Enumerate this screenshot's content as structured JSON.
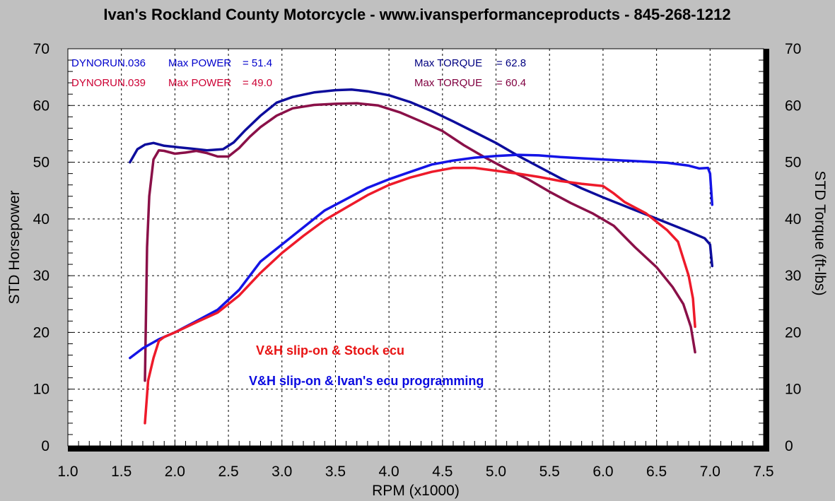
{
  "chart_data": {
    "type": "line",
    "title": "Ivan's Rockland County Motorcycle - www.ivansperformanceproducts - 845-268-1212",
    "xlabel": "RPM (x1000)",
    "ylabel_left": "STD Horsepower",
    "ylabel_right": "STD Torque (ft-lbs)",
    "xlim": [
      1.0,
      7.5
    ],
    "ylim": [
      0,
      70
    ],
    "x_ticks": [
      "1.0",
      "1.5",
      "2.0",
      "2.5",
      "3.0",
      "3.5",
      "4.0",
      "4.5",
      "5.0",
      "5.5",
      "6.0",
      "6.5",
      "7.0",
      "7.5"
    ],
    "y_ticks": [
      "0",
      "10",
      "20",
      "30",
      "40",
      "50",
      "60",
      "70"
    ],
    "grid": true,
    "runs": [
      {
        "name": "DYNORUN.036",
        "power_label": "Max POWER",
        "power_value": "= 51.4",
        "torque_label": "Max TORQUE",
        "torque_value": "= 62.8",
        "power_color": "#0000cc",
        "torque_color": "#000080"
      },
      {
        "name": "DYNORUN.039",
        "power_label": "Max POWER",
        "power_value": "= 49.0",
        "torque_label": "Max TORQUE",
        "torque_value": "= 60.4",
        "power_color": "#cc0033",
        "torque_color": "#800040"
      }
    ],
    "annotations": [
      {
        "text": "V&H slip-on & Stock ecu",
        "color": "#e81414"
      },
      {
        "text": "V&H slip-on & Ivan's ecu programming",
        "color": "#0a0ae0"
      }
    ],
    "series": [
      {
        "name": "DYNORUN.036 Torque",
        "color": "#0d0d9c",
        "x": [
          1.58,
          1.65,
          1.72,
          1.8,
          1.9,
          2.0,
          2.15,
          2.3,
          2.45,
          2.55,
          2.65,
          2.8,
          2.95,
          3.1,
          3.3,
          3.5,
          3.65,
          3.8,
          4.0,
          4.2,
          4.4,
          4.6,
          4.8,
          5.0,
          5.2,
          5.4,
          5.6,
          5.8,
          6.0,
          6.2,
          6.4,
          6.6,
          6.8,
          6.95,
          7.0,
          7.02
        ],
        "y": [
          50,
          52.3,
          53.1,
          53.4,
          52.9,
          52.7,
          52.4,
          52.1,
          52.3,
          53.5,
          55.5,
          58.2,
          60.5,
          61.5,
          62.3,
          62.7,
          62.8,
          62.5,
          61.8,
          60.6,
          59,
          57.2,
          55.3,
          53.4,
          51.2,
          49.2,
          47.2,
          45.4,
          43.8,
          42.3,
          40.8,
          39.3,
          37.8,
          36.6,
          35.5,
          31.7
        ]
      },
      {
        "name": "DYNORUN.039 Torque",
        "color": "#8a1048",
        "x": [
          1.72,
          1.74,
          1.76,
          1.8,
          1.85,
          1.9,
          2.0,
          2.1,
          2.2,
          2.3,
          2.4,
          2.5,
          2.6,
          2.7,
          2.8,
          2.95,
          3.1,
          3.3,
          3.5,
          3.7,
          3.9,
          4.1,
          4.3,
          4.5,
          4.7,
          4.9,
          5.1,
          5.3,
          5.5,
          5.7,
          5.9,
          6.1,
          6.3,
          6.5,
          6.65,
          6.75,
          6.82,
          6.86
        ],
        "y": [
          11.5,
          35,
          44,
          50.5,
          52.1,
          52,
          51.5,
          51.7,
          52,
          51.6,
          51,
          51,
          52.5,
          54.5,
          56.2,
          58.2,
          59.5,
          60.1,
          60.3,
          60.4,
          60,
          58.8,
          57.2,
          55.5,
          53,
          50.8,
          48.8,
          47,
          44.8,
          42.8,
          41,
          38.8,
          35,
          31.5,
          28,
          25,
          21,
          16.5
        ]
      },
      {
        "name": "DYNORUN.036 Power",
        "color": "#1414e6",
        "x": [
          1.58,
          1.7,
          1.85,
          2.0,
          2.2,
          2.4,
          2.6,
          2.8,
          3.0,
          3.2,
          3.4,
          3.6,
          3.8,
          4.0,
          4.2,
          4.4,
          4.6,
          4.8,
          5.0,
          5.2,
          5.4,
          5.6,
          5.8,
          6.0,
          6.2,
          6.4,
          6.6,
          6.8,
          6.9,
          6.98,
          7.0,
          7.02
        ],
        "y": [
          15.5,
          17.2,
          18.8,
          20,
          22,
          24,
          27.5,
          32.5,
          35.5,
          38.5,
          41.5,
          43.5,
          45.5,
          47,
          48.3,
          49.6,
          50.3,
          50.8,
          51.1,
          51.3,
          51.2,
          50.9,
          50.7,
          50.5,
          50.3,
          50.1,
          49.9,
          49.4,
          48.9,
          49,
          48,
          42.5
        ]
      },
      {
        "name": "DYNORUN.039 Power",
        "color": "#ee1a2a",
        "x": [
          1.72,
          1.75,
          1.8,
          1.85,
          1.9,
          2.0,
          2.2,
          2.4,
          2.6,
          2.8,
          3.0,
          3.2,
          3.4,
          3.6,
          3.8,
          4.0,
          4.2,
          4.4,
          4.6,
          4.8,
          5.0,
          5.2,
          5.4,
          5.6,
          5.8,
          6.0,
          6.1,
          6.2,
          6.3,
          6.4,
          6.5,
          6.6,
          6.7,
          6.8,
          6.84,
          6.86
        ],
        "y": [
          4,
          11.5,
          15.5,
          18.5,
          19.2,
          20,
          21.8,
          23.5,
          26.5,
          30.5,
          34,
          37,
          39.8,
          42,
          44.2,
          46,
          47.3,
          48.3,
          49,
          49,
          48.5,
          48,
          47.4,
          46.7,
          46.2,
          45.8,
          44.5,
          43,
          42,
          41,
          39.5,
          38,
          36,
          30,
          26,
          21
        ]
      }
    ]
  }
}
